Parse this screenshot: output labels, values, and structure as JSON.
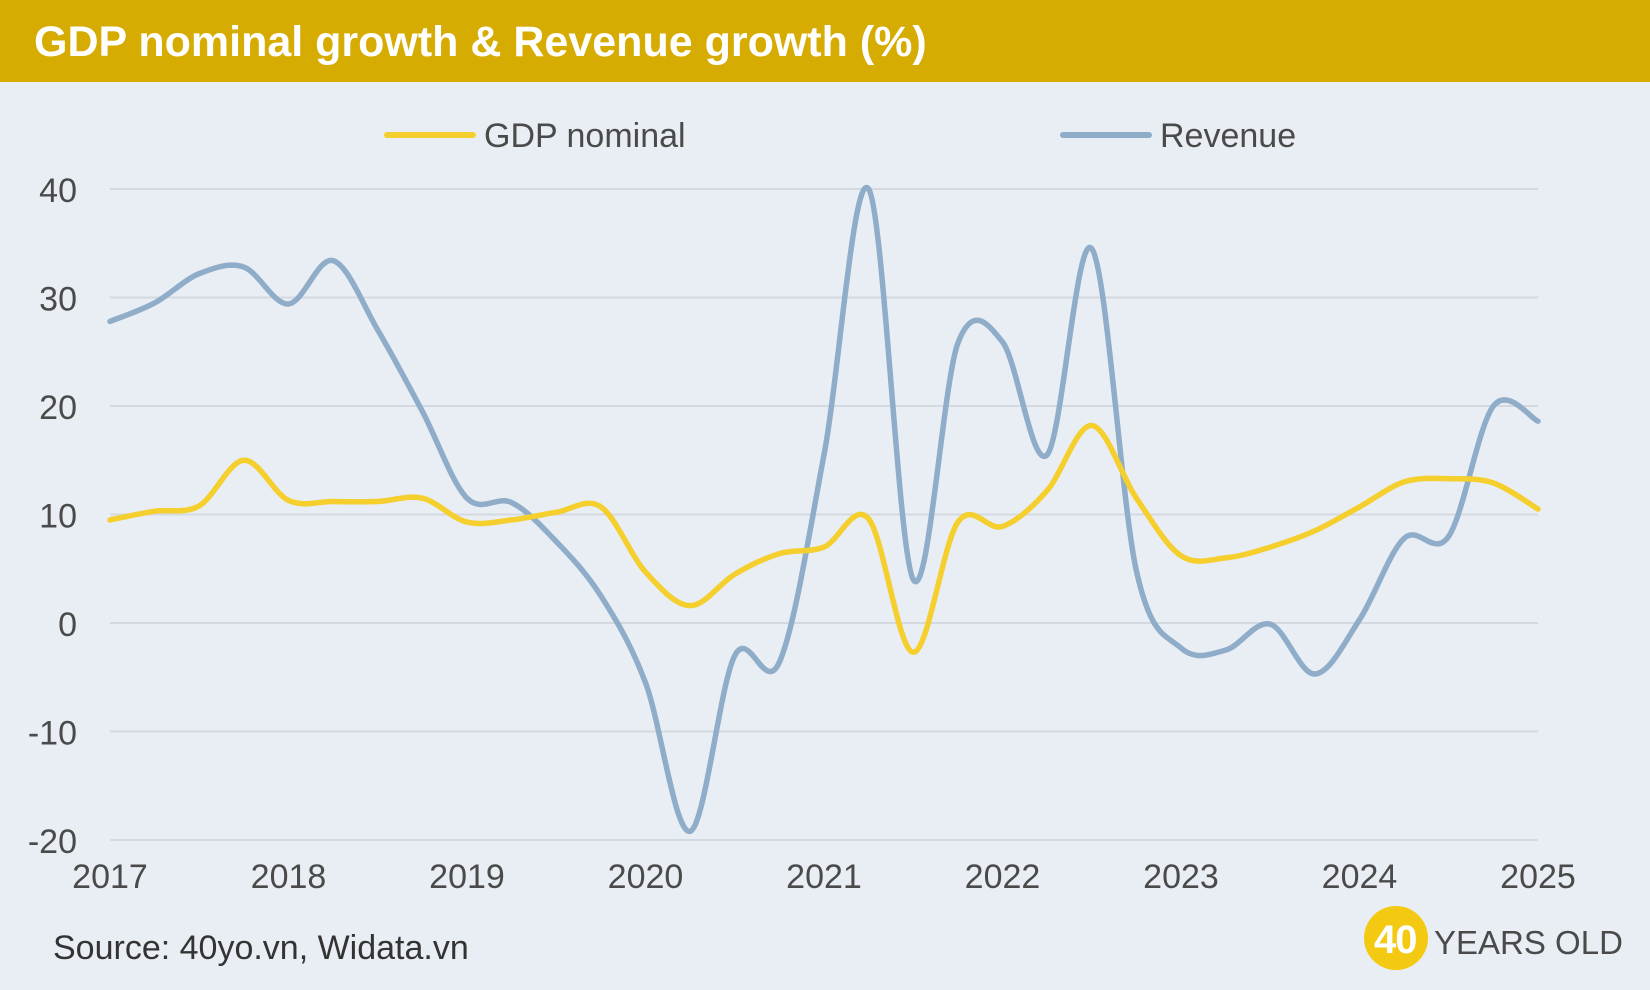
{
  "header": {
    "title": "GDP nominal growth & Revenue growth (%)"
  },
  "footer": {
    "source": "Source: 40yo.vn, Widata.vn",
    "logo_number": "40",
    "logo_text": "YEARS OLD"
  },
  "colors": {
    "title_bar": "#d6ab02",
    "background": "#e9eef5",
    "gdp": "#f4cf2e",
    "revenue": "#8fadc8",
    "grid": "#d4d9df",
    "logo": "#f3c912"
  },
  "chart_data": {
    "type": "line",
    "title": "GDP nominal growth & Revenue growth (%)",
    "xlabel": "",
    "ylabel": "",
    "xlim": [
      2017,
      2025
    ],
    "ylim": [
      -20,
      40
    ],
    "xticks": [
      "2017",
      "2018",
      "2019",
      "2020",
      "2021",
      "2022",
      "2023",
      "2024",
      "2025"
    ],
    "yticks": [
      "40",
      "30",
      "20",
      "10",
      "0",
      "-10",
      "-20"
    ],
    "grid": "horizontal",
    "legend_position": "top-center",
    "series": [
      {
        "name": "GDP nominal",
        "color": "#f4cf2e",
        "x": [
          2017.0,
          2017.25,
          2017.5,
          2017.75,
          2018.0,
          2018.25,
          2018.5,
          2018.75,
          2019.0,
          2019.25,
          2019.5,
          2019.75,
          2020.0,
          2020.25,
          2020.5,
          2020.75,
          2021.0,
          2021.25,
          2021.5,
          2021.75,
          2022.0,
          2022.25,
          2022.5,
          2022.75,
          2023.0,
          2023.25,
          2023.5,
          2023.75,
          2024.0,
          2024.25,
          2024.5,
          2024.75,
          2025.0
        ],
        "values": [
          9.5,
          10.3,
          10.8,
          15.0,
          11.3,
          11.2,
          11.2,
          11.5,
          9.3,
          9.5,
          10.2,
          10.7,
          4.7,
          1.6,
          4.5,
          6.4,
          7.0,
          9.6,
          -2.7,
          9.3,
          8.9,
          12.2,
          18.2,
          11.5,
          6.2,
          6.0,
          7.0,
          8.5,
          10.7,
          13.0,
          13.3,
          12.9,
          10.5
        ]
      },
      {
        "name": "Revenue",
        "color": "#8fadc8",
        "x": [
          2017.0,
          2017.25,
          2017.5,
          2017.75,
          2018.0,
          2018.25,
          2018.5,
          2018.75,
          2019.0,
          2019.25,
          2019.5,
          2019.75,
          2020.0,
          2020.25,
          2020.5,
          2020.75,
          2021.0,
          2021.25,
          2021.5,
          2021.75,
          2022.0,
          2022.25,
          2022.5,
          2022.75,
          2023.0,
          2023.25,
          2023.5,
          2023.75,
          2024.0,
          2024.25,
          2024.5,
          2024.75,
          2025.0
        ],
        "values": [
          27.8,
          29.5,
          32.2,
          32.8,
          29.4,
          33.4,
          27.0,
          19.5,
          11.5,
          11.1,
          7.5,
          2.5,
          -5.5,
          -19.2,
          -3.0,
          -3.6,
          15.5,
          40.0,
          4.0,
          25.8,
          25.9,
          15.5,
          34.5,
          4.8,
          -2.3,
          -2.5,
          -0.1,
          -4.7,
          0.3,
          7.8,
          8.0,
          20.0,
          18.6
        ]
      }
    ]
  }
}
